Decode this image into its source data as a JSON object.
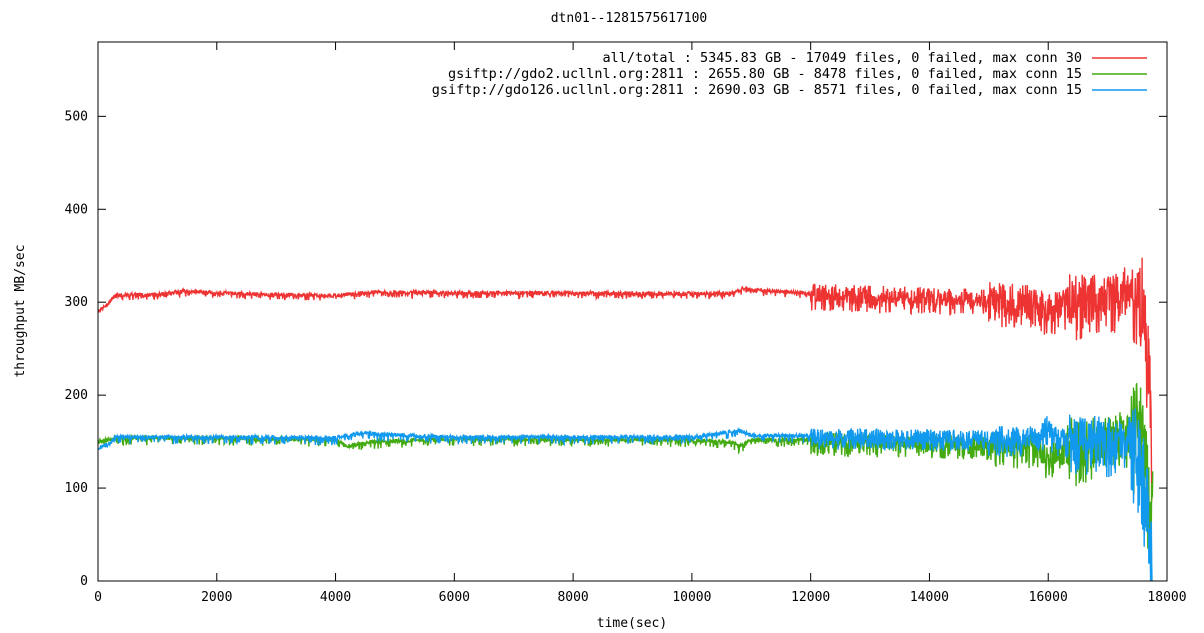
{
  "chart_data": {
    "type": "line",
    "title": "dtn01--1281575617100",
    "xlabel": "time(sec)",
    "ylabel": "throughput MB/sec",
    "xlim": [
      0,
      18000
    ],
    "ylim": [
      0,
      580
    ],
    "x_ticks": [
      0,
      2000,
      4000,
      6000,
      8000,
      10000,
      12000,
      14000,
      16000,
      18000
    ],
    "y_ticks": [
      0,
      100,
      200,
      300,
      400,
      500
    ],
    "grid": false,
    "legend_position": "top-right",
    "series": [
      {
        "name": "all/total : 5345.83 GB - 17049 files, 0 failed, max conn 30",
        "color": "#ee3333",
        "baseline_points": [
          [
            0,
            290
          ],
          [
            150,
            297
          ],
          [
            300,
            308
          ],
          [
            1000,
            308
          ],
          [
            1400,
            312
          ],
          [
            2500,
            309
          ],
          [
            4000,
            307
          ],
          [
            4600,
            311
          ],
          [
            6000,
            310
          ],
          [
            8000,
            310
          ],
          [
            10000,
            309
          ],
          [
            10700,
            310
          ],
          [
            10900,
            316
          ],
          [
            11000,
            313
          ],
          [
            12000,
            310
          ],
          [
            13000,
            308
          ],
          [
            14000,
            306
          ],
          [
            15000,
            304
          ],
          [
            15800,
            300
          ],
          [
            16000,
            290
          ],
          [
            16300,
            300
          ],
          [
            16800,
            305
          ],
          [
            17200,
            310
          ],
          [
            17450,
            315
          ],
          [
            17600,
            300
          ],
          [
            17700,
            230
          ],
          [
            17750,
            150
          ]
        ],
        "noise": [
          [
            0,
            2,
            2
          ],
          [
            300,
            2,
            6
          ],
          [
            12000,
            10,
            20
          ],
          [
            15000,
            15,
            30
          ],
          [
            16300,
            25,
            45
          ],
          [
            17400,
            40,
            80
          ]
        ]
      },
      {
        "name": "gsiftp://gdo2.ucllnl.org:2811 : 2655.80 GB - 8478 files, 0 failed, max conn 15",
        "color": "#44aa11",
        "baseline_points": [
          [
            0,
            150
          ],
          [
            300,
            154
          ],
          [
            2000,
            154
          ],
          [
            4000,
            152
          ],
          [
            4200,
            145
          ],
          [
            4600,
            150
          ],
          [
            6000,
            153
          ],
          [
            8000,
            152
          ],
          [
            10000,
            152
          ],
          [
            10700,
            149
          ],
          [
            10800,
            145
          ],
          [
            11000,
            152
          ],
          [
            12000,
            152
          ],
          [
            14000,
            150
          ],
          [
            15800,
            145
          ],
          [
            16000,
            128
          ],
          [
            16200,
            145
          ],
          [
            17000,
            150
          ],
          [
            17400,
            155
          ],
          [
            17550,
            170
          ],
          [
            17650,
            120
          ],
          [
            17720,
            40
          ],
          [
            17760,
            150
          ]
        ],
        "noise": [
          [
            0,
            2,
            4
          ],
          [
            300,
            2,
            8
          ],
          [
            12000,
            8,
            18
          ],
          [
            15000,
            12,
            25
          ],
          [
            16300,
            25,
            45
          ],
          [
            17400,
            45,
            80
          ]
        ]
      },
      {
        "name": "gsiftp://gdo126.ucllnl.org:2811 : 2690.03 GB - 8571 files, 0 failed, max conn 15",
        "color": "#1199ee",
        "baseline_points": [
          [
            0,
            143
          ],
          [
            200,
            148
          ],
          [
            300,
            155
          ],
          [
            2000,
            155
          ],
          [
            4000,
            154
          ],
          [
            4500,
            160
          ],
          [
            4700,
            158
          ],
          [
            6000,
            155
          ],
          [
            8000,
            155
          ],
          [
            10000,
            155
          ],
          [
            10800,
            162
          ],
          [
            11000,
            157
          ],
          [
            12000,
            156
          ],
          [
            14000,
            155
          ],
          [
            15800,
            155
          ],
          [
            16000,
            168
          ],
          [
            16100,
            155
          ],
          [
            17000,
            150
          ],
          [
            17400,
            152
          ],
          [
            17600,
            120
          ],
          [
            17700,
            60
          ],
          [
            17760,
            0
          ]
        ],
        "noise": [
          [
            0,
            2,
            4
          ],
          [
            300,
            2,
            8
          ],
          [
            12000,
            8,
            15
          ],
          [
            15000,
            10,
            22
          ],
          [
            16300,
            22,
            40
          ],
          [
            17400,
            45,
            80
          ]
        ]
      }
    ]
  }
}
